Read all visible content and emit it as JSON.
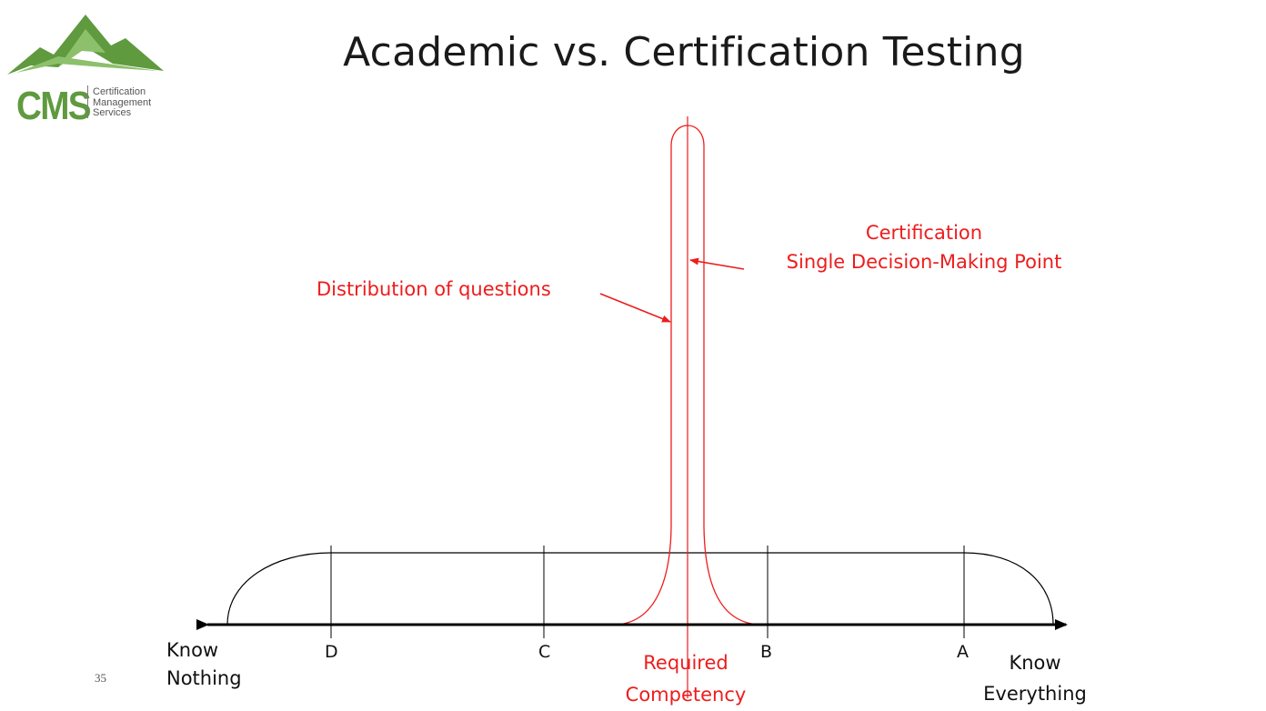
{
  "slide": {
    "title": "Academic vs. Certification Testing",
    "page_number": "35"
  },
  "logo": {
    "brand": "CMS",
    "line1": "Certification",
    "line2": "Management",
    "line3": "Services",
    "colors": {
      "green": "#5f9a3f",
      "light_green": "#8cc06a"
    }
  },
  "axis": {
    "left_line1": "Know",
    "left_line2": "Nothing",
    "right_line1": "Know",
    "right_line2": "Everything",
    "ticks": [
      "D",
      "C",
      "B",
      "A"
    ]
  },
  "annotations": {
    "distribution": "Distribution of questions",
    "certification_line1": "Certification",
    "certification_line2": "Single Decision-Making Point",
    "required_line1": "Required",
    "required_line2": "Competency"
  },
  "colors": {
    "red": "#ee1c1c",
    "line": "#000000"
  }
}
